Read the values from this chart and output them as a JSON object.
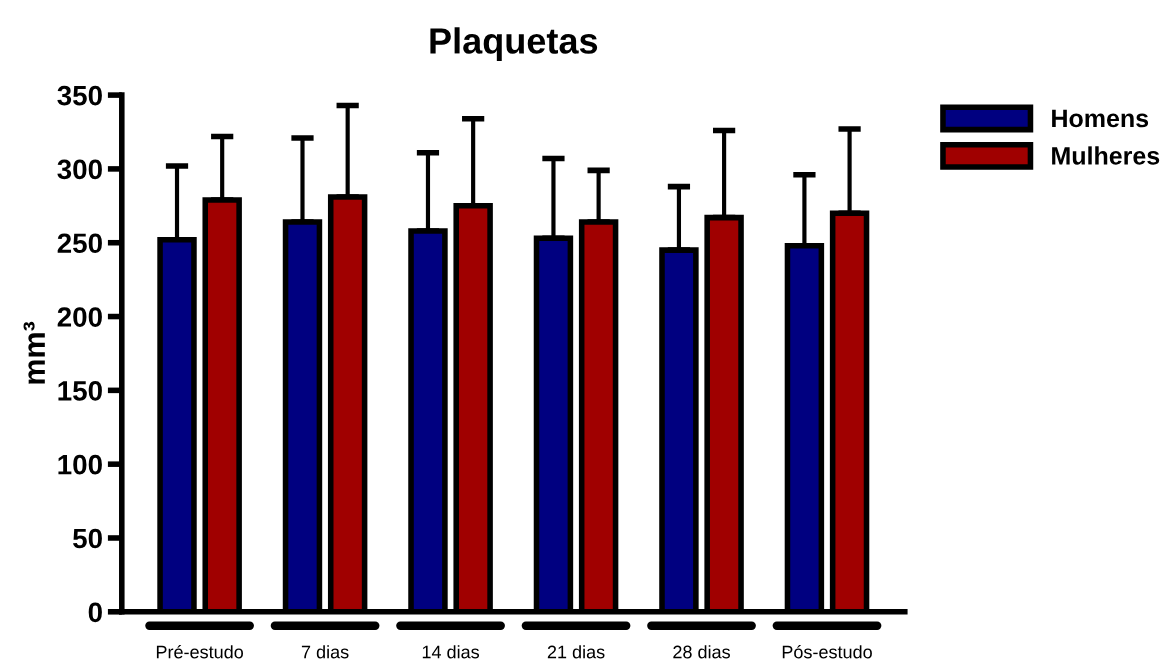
{
  "chart_data": {
    "type": "bar",
    "title": "Plaquetas",
    "ylabel": "mm³",
    "categories": [
      "Pré-estudo",
      "7 dias",
      "14 dias",
      "21 dias",
      "28 dias",
      "Pós-estudo"
    ],
    "series": [
      {
        "name": "Homens",
        "color": "#000080",
        "values": [
          252,
          264,
          258,
          253,
          245,
          248
        ],
        "errors": [
          [
            252,
            302
          ],
          [
            264,
            321
          ],
          [
            258,
            311
          ],
          [
            253,
            307
          ],
          [
            245,
            288
          ],
          [
            248,
            296
          ]
        ]
      },
      {
        "name": "Mulheres",
        "color": "#a00000",
        "values": [
          279,
          281,
          275,
          264,
          267,
          270
        ],
        "errors": [
          [
            279,
            322
          ],
          [
            281,
            343
          ],
          [
            275,
            334
          ],
          [
            264,
            299
          ],
          [
            267,
            326
          ],
          [
            270,
            327
          ]
        ]
      }
    ],
    "ylim": [
      0,
      350
    ],
    "yticks": [
      0,
      50,
      100,
      150,
      200,
      250,
      300,
      350
    ],
    "grid": false,
    "legend": "top right"
  }
}
